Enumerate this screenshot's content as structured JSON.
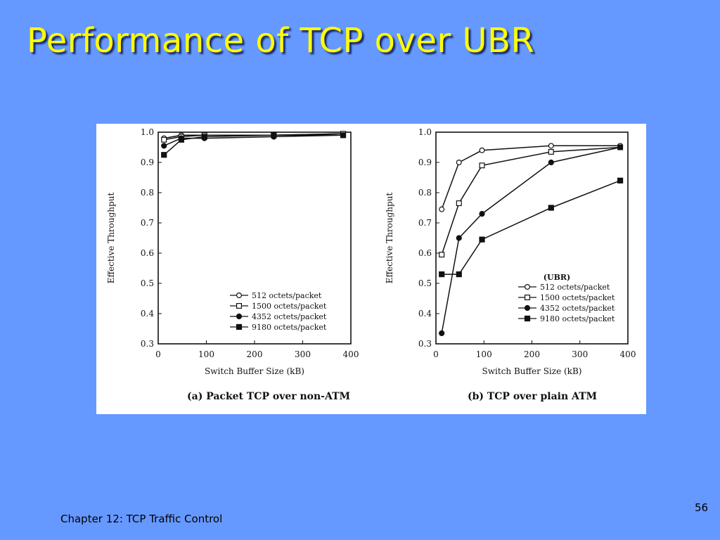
{
  "slide": {
    "title": "Performance of TCP over UBR",
    "footer": "Chapter 12:  TCP Traffic Control",
    "page_number": "56"
  },
  "chart_data": [
    {
      "type": "line",
      "caption": "(a) Packet TCP over non-ATM",
      "xlabel": "Switch Buffer Size (kB)",
      "ylabel": "Effective Throughput",
      "xlim": [
        0,
        400
      ],
      "ylim": [
        0.3,
        1.0
      ],
      "xticks": [
        0,
        100,
        200,
        300,
        400
      ],
      "yticks": [
        0.3,
        0.4,
        0.5,
        0.6,
        0.7,
        0.8,
        0.9,
        1.0
      ],
      "grid": false,
      "legend_position": "bottom-right",
      "legend_title": "",
      "series": [
        {
          "name": "512 octets/packet",
          "marker": "open-circle",
          "x": [
            12,
            48,
            96,
            240,
            384
          ],
          "y": [
            0.98,
            0.99,
            0.99,
            0.99,
            0.995
          ]
        },
        {
          "name": "1500 octets/packet",
          "marker": "open-square",
          "x": [
            12,
            48,
            96,
            240,
            384
          ],
          "y": [
            0.975,
            0.985,
            0.99,
            0.99,
            0.995
          ]
        },
        {
          "name": "4352 octets/packet",
          "marker": "filled-circle",
          "x": [
            12,
            48,
            96,
            240,
            384
          ],
          "y": [
            0.955,
            0.98,
            0.98,
            0.985,
            0.99
          ]
        },
        {
          "name": "9180 octets/packet",
          "marker": "filled-square",
          "x": [
            12,
            48,
            96,
            240,
            384
          ],
          "y": [
            0.925,
            0.975,
            0.985,
            0.99,
            0.99
          ]
        }
      ]
    },
    {
      "type": "line",
      "caption": "(b) TCP over plain ATM",
      "xlabel": "Switch Buffer Size (kB)",
      "ylabel": "Effective Throughput",
      "xlim": [
        0,
        400
      ],
      "ylim": [
        0.3,
        1.0
      ],
      "xticks": [
        0,
        100,
        200,
        300,
        400
      ],
      "yticks": [
        0.3,
        0.4,
        0.5,
        0.6,
        0.7,
        0.8,
        0.9,
        1.0
      ],
      "grid": false,
      "legend_position": "bottom-right",
      "legend_title": "(UBR)",
      "series": [
        {
          "name": "512 octets/packet",
          "marker": "open-circle",
          "x": [
            12,
            48,
            96,
            240,
            384
          ],
          "y": [
            0.745,
            0.9,
            0.94,
            0.955,
            0.955
          ]
        },
        {
          "name": "1500 octets/packet",
          "marker": "open-square",
          "x": [
            12,
            48,
            96,
            240,
            384
          ],
          "y": [
            0.595,
            0.765,
            0.89,
            0.935,
            0.95
          ]
        },
        {
          "name": "4352 octets/packet",
          "marker": "filled-circle",
          "x": [
            12,
            48,
            96,
            240,
            384
          ],
          "y": [
            0.335,
            0.65,
            0.73,
            0.9,
            0.95
          ]
        },
        {
          "name": "9180 octets/packet",
          "marker": "filled-square",
          "x": [
            12,
            48,
            96,
            240,
            384
          ],
          "y": [
            0.53,
            0.53,
            0.645,
            0.75,
            0.84
          ]
        }
      ]
    }
  ]
}
